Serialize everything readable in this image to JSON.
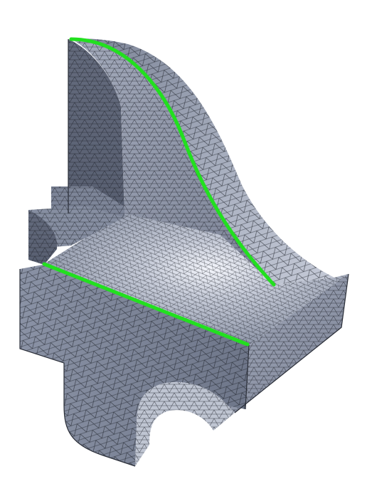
{
  "scene": {
    "background_color": "#ffffff",
    "mesh_fill_light": "#dfe4ef",
    "mesh_fill_mid": "#9aa2b4",
    "mesh_fill_dark": "#5d6476",
    "mesh_line_color": "#1c1f27",
    "highlight_color": "#e9edf7",
    "selected_edge_color": "#22e01f"
  }
}
